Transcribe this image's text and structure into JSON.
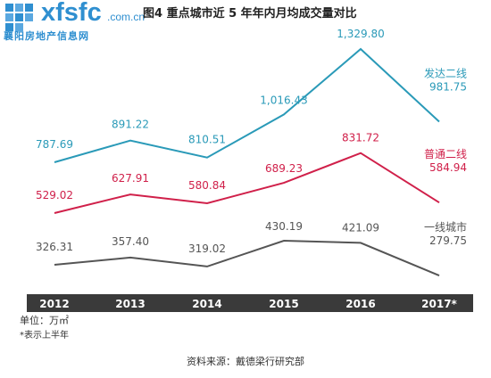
{
  "logo": {
    "text": "xfsfc",
    "domain": ".com.cn",
    "subtitle": "襄阳房地产信息网"
  },
  "title": "图4  重点城市近 5 年年内月均成交量对比",
  "unit_text": "单位：万㎡",
  "note_text": "*表示上半年",
  "source_text": "资料来源：戴德梁行研究部",
  "colors": {
    "series_1": "#2a9ab8",
    "series_2": "#d0204a",
    "series_3": "#555555",
    "axis_band": "#3a3a3a",
    "axis_text": "#ffffff",
    "logo": "#2f8fd0"
  },
  "chart_data": {
    "type": "line",
    "categories": [
      "2012",
      "2013",
      "2014",
      "2015",
      "2016",
      "2017*"
    ],
    "series": [
      {
        "name": "发达二线",
        "values": [
          787.69,
          891.22,
          810.51,
          1016.43,
          1329.8,
          981.75
        ],
        "labels": [
          "787.69",
          "891.22",
          "810.51",
          "1,016.43",
          "1,329.80",
          "981.75"
        ],
        "color": "#2a9ab8"
      },
      {
        "name": "普通二线",
        "values": [
          529.02,
          627.91,
          580.84,
          689.23,
          831.72,
          584.94
        ],
        "labels": [
          "529.02",
          "627.91",
          "580.84",
          "689.23",
          "831.72",
          "584.94"
        ],
        "color": "#d0204a"
      },
      {
        "name": "一线城市",
        "values": [
          326.31,
          357.4,
          319.02,
          430.19,
          421.09,
          279.75
        ],
        "labels": [
          "326.31",
          "357.40",
          "319.02",
          "430.19",
          "421.09",
          "279.75"
        ],
        "color": "#555555"
      }
    ],
    "grid": false,
    "legend": "inline-right"
  }
}
